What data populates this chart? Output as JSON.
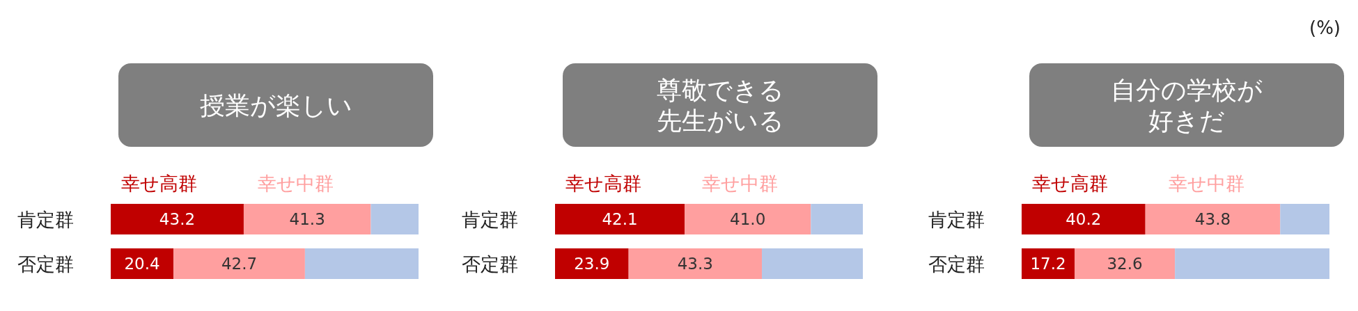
{
  "chart_data": [
    {
      "type": "bar",
      "orientation": "horizontal",
      "stacked": true,
      "title": "授業が楽しい",
      "categories": [
        "肯定群",
        "否定群"
      ],
      "legend": "top left",
      "series": [
        {
          "name": "幸せ高群",
          "color": "#c00000",
          "values": [
            43.2,
            20.4
          ],
          "value_labels": [
            "43.2",
            "20.4"
          ]
        },
        {
          "name": "幸せ中群",
          "color": "#ff9f9f",
          "values": [
            41.3,
            42.7
          ],
          "value_labels": [
            "41.3",
            "42.7"
          ]
        },
        {
          "color": "#b4c7e7",
          "values": [
            15.5,
            36.9
          ]
        }
      ]
    },
    {
      "type": "bar",
      "orientation": "horizontal",
      "stacked": true,
      "title": "尊敬できる",
      "subtitle": "先生がいる",
      "categories": [
        "肯定群",
        "否定群"
      ],
      "legend": "top left",
      "series": [
        {
          "name": "幸せ高群",
          "color": "#c00000",
          "values": [
            42.1,
            23.9
          ],
          "value_labels": [
            "42.1",
            "23.9"
          ]
        },
        {
          "name": "幸せ中群",
          "color": "#ff9f9f",
          "values": [
            41.0,
            43.3
          ],
          "value_labels": [
            "41.0",
            "43.3"
          ]
        },
        {
          "color": "#b4c7e7",
          "values": [
            16.9,
            32.8
          ]
        }
      ]
    },
    {
      "type": "bar",
      "orientation": "horizontal",
      "stacked": true,
      "title": "自分の学校が",
      "subtitle": "好きだ",
      "categories": [
        "肯定群",
        "否定群"
      ],
      "legend": "top left",
      "annotations": [
        "(%)"
      ],
      "series": [
        {
          "name": "幸せ高群",
          "color": "#c00000",
          "values": [
            40.2,
            17.2
          ],
          "value_labels": [
            "40.2",
            "17.2"
          ]
        },
        {
          "name": "幸せ中群",
          "color": "#ff9f9f",
          "values": [
            43.8,
            32.6
          ],
          "value_labels": [
            "43.8",
            "32.6"
          ]
        },
        {
          "color": "#b4c7e7",
          "values": [
            16.0,
            50.2
          ]
        }
      ]
    }
  ]
}
